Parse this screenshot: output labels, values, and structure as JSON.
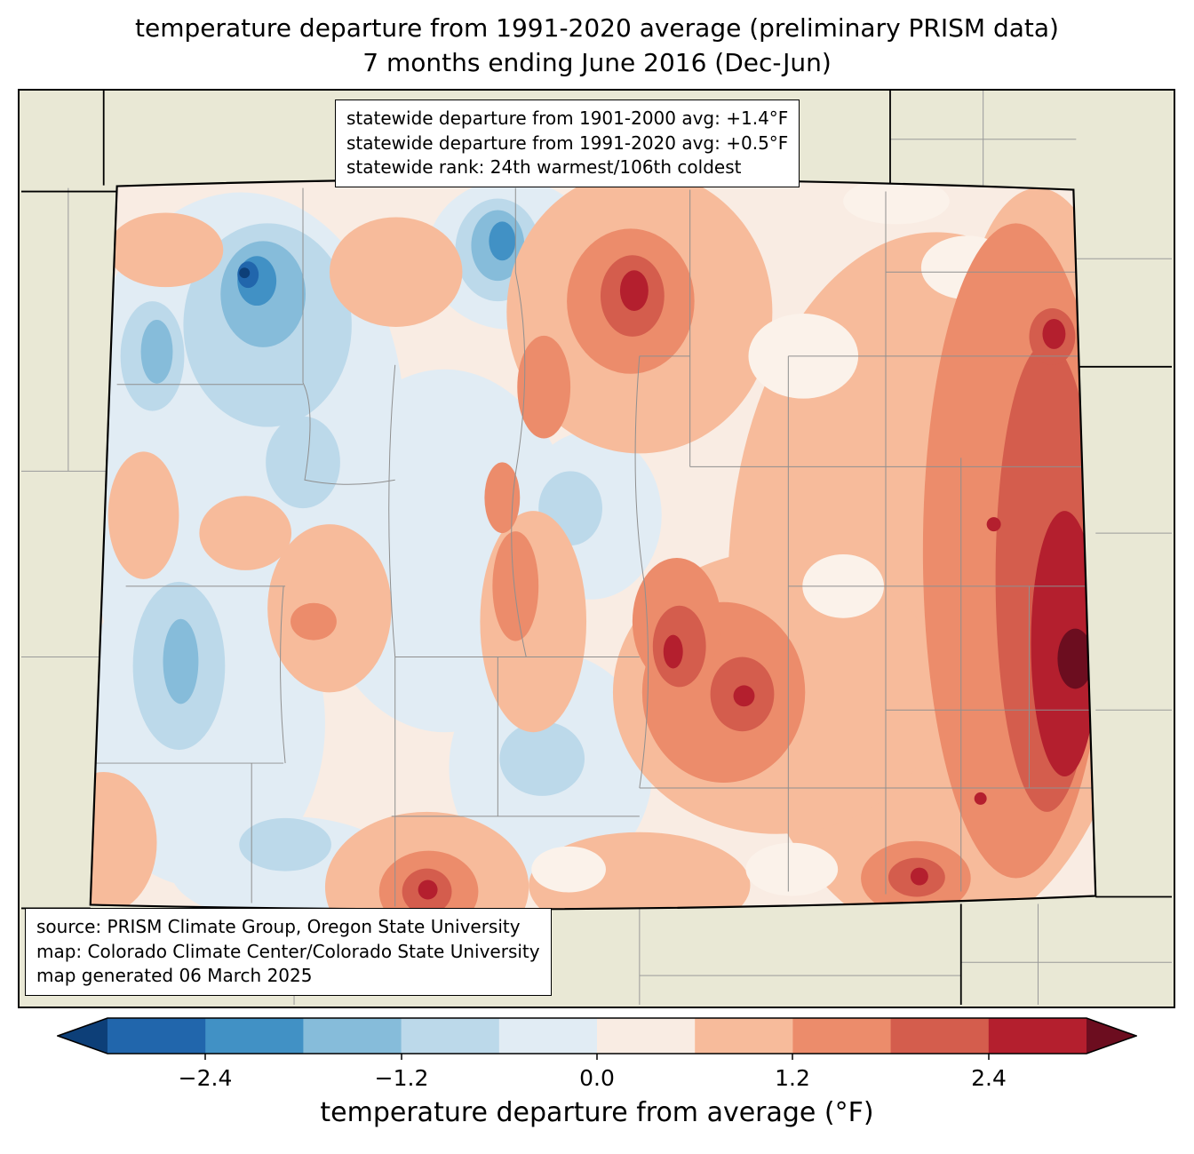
{
  "title": {
    "line1": "temperature departure from 1991-2020 average (preliminary PRISM data)",
    "line2": "7 months ending June 2016 (Dec-Jun)"
  },
  "stats_box": {
    "line1": "statewide departure from 1901-2000 avg: +1.4°F",
    "line2": "statewide departure from 1991-2020 avg: +0.5°F",
    "line3": "statewide rank: 24th warmest/106th coldest"
  },
  "source_box": {
    "line1": "source: PRISM Climate Group, Oregon State University",
    "line2": "map: Colorado Climate Center/Colorado State University",
    "line3": "map generated 06 March 2025"
  },
  "colorbar": {
    "label": "temperature departure from average (°F)",
    "ticks": [
      "−2.4",
      "−1.2",
      "0.0",
      "1.2",
      "2.4"
    ],
    "tick_values": [
      -2.4,
      -1.2,
      0.0,
      1.2,
      2.4
    ],
    "range": [
      -3.0,
      3.0
    ],
    "bin_width": 0.6,
    "segment_colors": [
      "#2166ac",
      "#4191c5",
      "#86bcda",
      "#bcd9ea",
      "#e1ecf4",
      "#f9ece3",
      "#f7bb9b",
      "#ec8c6b",
      "#d45d4d",
      "#b41f2e"
    ],
    "left_arrow_color": "#0d3f78",
    "right_arrow_color": "#6c0d1f"
  },
  "map": {
    "region": "Colorado",
    "background_color": "#e9e8d5",
    "county_line_color": "#8f8f8f",
    "state_outline_color": "#000000"
  }
}
